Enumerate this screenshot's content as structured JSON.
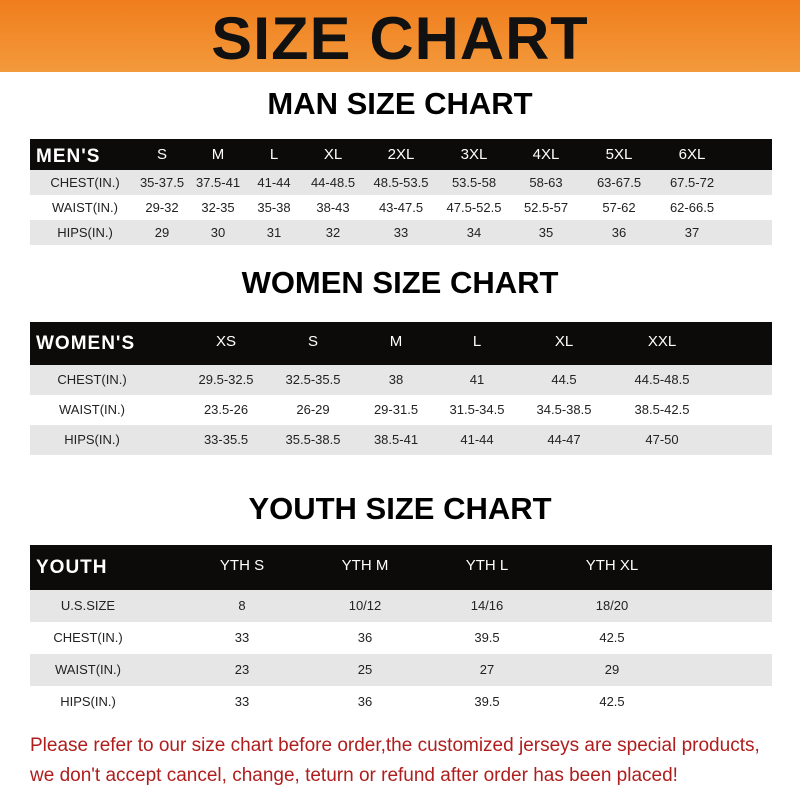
{
  "banner_title": "SIZE CHART",
  "men": {
    "title": "MAN SIZE CHART",
    "header": [
      "MEN'S",
      "S",
      "M",
      "L",
      "XL",
      "2XL",
      "3XL",
      "4XL",
      "5XL",
      "6XL"
    ],
    "rows": [
      [
        "CHEST(IN.)",
        "35-37.5",
        "37.5-41",
        "41-44",
        "44-48.5",
        "48.5-53.5",
        "53.5-58",
        "58-63",
        "63-67.5",
        "67.5-72"
      ],
      [
        "WAIST(IN.)",
        "29-32",
        "32-35",
        "35-38",
        "38-43",
        "43-47.5",
        "47.5-52.5",
        "52.5-57",
        "57-62",
        "62-66.5"
      ],
      [
        "HIPS(IN.)",
        "29",
        "30",
        "31",
        "32",
        "33",
        "34",
        "35",
        "36",
        "37"
      ]
    ]
  },
  "women": {
    "title": "WOMEN SIZE CHART",
    "header": [
      "WOMEN'S",
      "XS",
      "S",
      "M",
      "L",
      "XL",
      "XXL"
    ],
    "rows": [
      [
        "CHEST(IN.)",
        "29.5-32.5",
        "32.5-35.5",
        "38",
        "41",
        "44.5",
        "44.5-48.5"
      ],
      [
        "WAIST(IN.)",
        "23.5-26",
        "26-29",
        "29-31.5",
        "31.5-34.5",
        "34.5-38.5",
        "38.5-42.5"
      ],
      [
        "HIPS(IN.)",
        "33-35.5",
        "35.5-38.5",
        "38.5-41",
        "41-44",
        "44-47",
        "47-50"
      ]
    ]
  },
  "youth": {
    "title": "YOUTH SIZE CHART",
    "header": [
      "YOUTH",
      "YTH S",
      "YTH M",
      "YTH L",
      "YTH XL"
    ],
    "rows": [
      [
        "U.S.SIZE",
        "8",
        "10/12",
        "14/16",
        "18/20"
      ],
      [
        "CHEST(IN.)",
        "33",
        "36",
        "39.5",
        "42.5"
      ],
      [
        "WAIST(IN.)",
        "23",
        "25",
        "27",
        "29"
      ],
      [
        "HIPS(IN.)",
        "33",
        "36",
        "39.5",
        "42.5"
      ]
    ]
  },
  "notice": [
    "Please refer to our size chart before order,the customized jerseys are special products,",
    "we don't accept cancel, change, teturn or refund after order has been placed!"
  ],
  "colors": {
    "banner": "#f07d1c",
    "header_row": "#0d0a0a",
    "notice": "#b01d1d"
  }
}
